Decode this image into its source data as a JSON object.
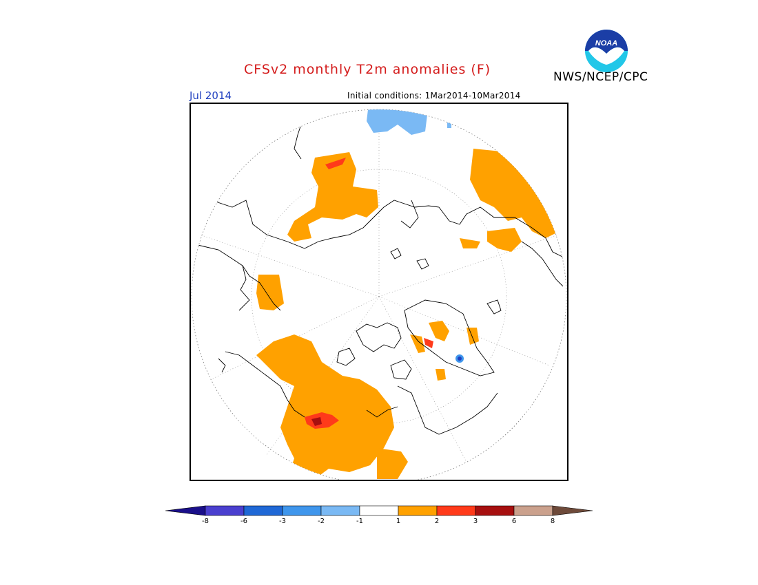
{
  "header": {
    "title": "CFSv2 monthly T2m anomalies (F)",
    "agency": "NWS/NCEP/CPC",
    "month": "Jul 2014",
    "initial_conditions": "Initial conditions: 1Mar2014-10Mar2014",
    "logo_text": "NOAA"
  },
  "legend": {
    "ticks": [
      "-8",
      "-6",
      "-3",
      "-2",
      "-1",
      "1",
      "2",
      "3",
      "6",
      "8"
    ],
    "colors": {
      "lt_-8": "#1a0f8a",
      "-8_-6": "#4a3fcf",
      "-6_-3": "#1f68d6",
      "-3_-2": "#3f96ec",
      "-2_-1": "#7ab9f4",
      "-1_1": "#ffffff",
      "1_2": "#ffa100",
      "2_3": "#ff3a1a",
      "3_6": "#a70f0f",
      "6_8": "#cba18d",
      "gt_8": "#6e4a3a"
    }
  },
  "map": {
    "projection": "north polar stereographic",
    "variable": "2m temperature anomaly"
  }
}
